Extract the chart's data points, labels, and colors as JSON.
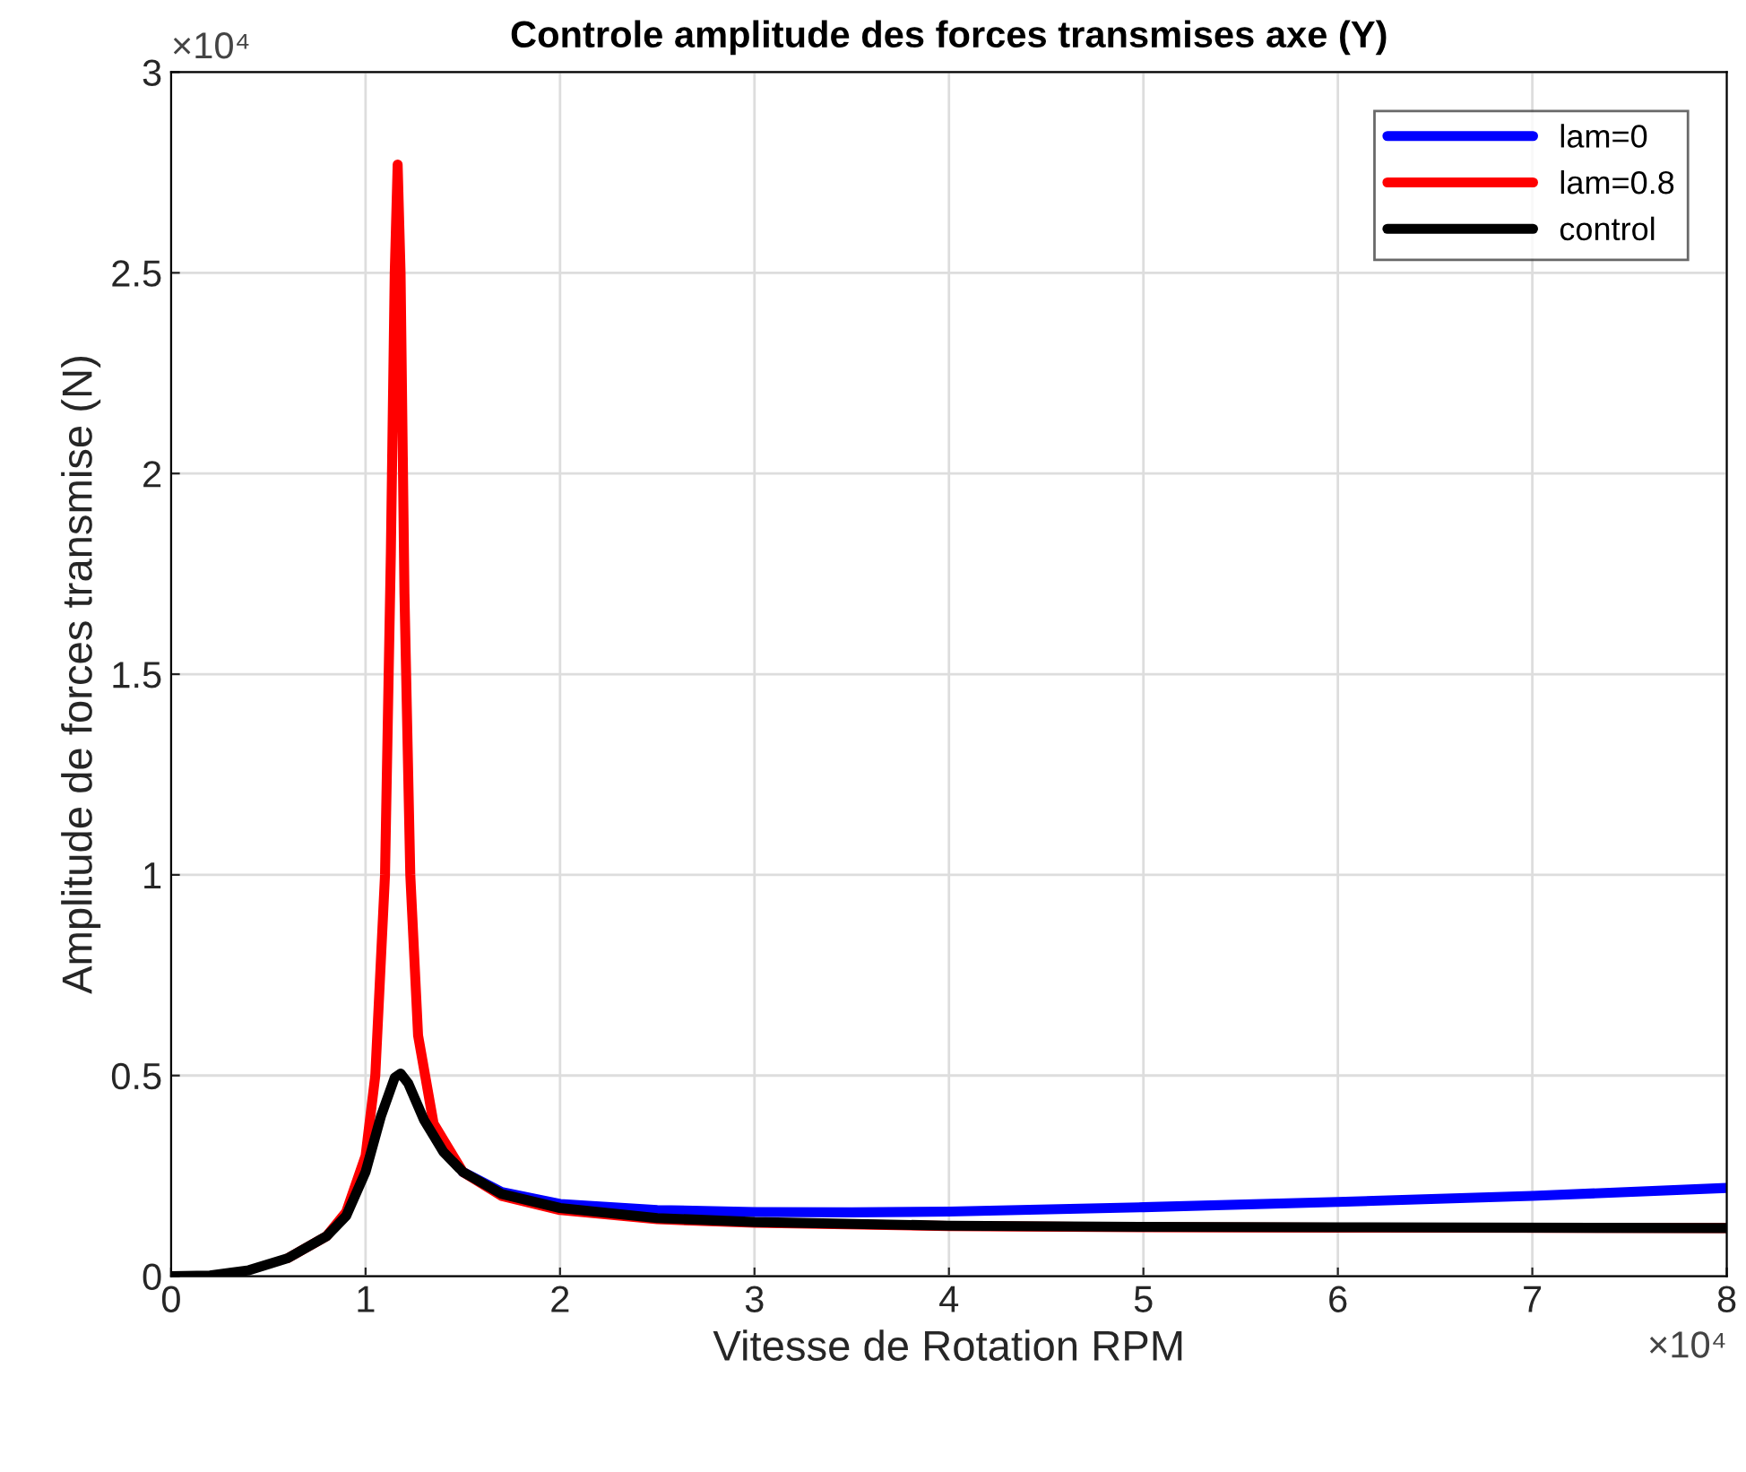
{
  "chart_data": {
    "type": "line",
    "title": "Controle amplitude des forces transmises axe (Y)",
    "xlabel": "Vitesse de Rotation RPM",
    "ylabel": "Amplitude de forces transmise (N)",
    "annotations": [
      "×10⁴",
      "×10⁴"
    ],
    "xlim": [
      0,
      8
    ],
    "xticks": [
      0,
      1,
      2,
      3,
      4,
      5,
      6,
      7,
      8
    ],
    "ylim": [
      0,
      3
    ],
    "yticks": [
      0,
      0.5,
      1,
      1.5,
      2,
      2.5,
      3
    ],
    "grid": true,
    "legend": "top right",
    "line_style": "solid",
    "series": [
      {
        "name": "lam=0",
        "color": "#0000ff",
        "x": [
          1.5,
          1.7,
          2.0,
          2.5,
          3.0,
          3.5,
          4.0,
          5.0,
          6.0,
          7.0,
          8.0
        ],
        "values": [
          0.26,
          0.21,
          0.18,
          0.165,
          0.16,
          0.159,
          0.161,
          0.172,
          0.185,
          0.2,
          0.22
        ]
      },
      {
        "name": "lam=0.8",
        "color": "#ff0000",
        "x": [
          0.6,
          0.8,
          0.9,
          1.0,
          1.05,
          1.1,
          1.13,
          1.15,
          1.165,
          1.18,
          1.2,
          1.23,
          1.27,
          1.35,
          1.5,
          1.7,
          2.0,
          2.5,
          3.0,
          4.0,
          5.0,
          6.0,
          8.0
        ],
        "values": [
          0.045,
          0.1,
          0.16,
          0.3,
          0.5,
          1.0,
          1.8,
          2.5,
          2.77,
          2.5,
          1.7,
          1.0,
          0.6,
          0.38,
          0.26,
          0.2,
          0.165,
          0.142,
          0.133,
          0.125,
          0.122,
          0.121,
          0.12
        ]
      },
      {
        "name": "control",
        "color": "#000000",
        "x": [
          0,
          0.2,
          0.4,
          0.6,
          0.8,
          0.9,
          1.0,
          1.08,
          1.15,
          1.18,
          1.22,
          1.3,
          1.4,
          1.5,
          1.7,
          2.0,
          2.5,
          3.0,
          4.0,
          5.0,
          6.0,
          8.0
        ],
        "values": [
          0,
          0.002,
          0.015,
          0.045,
          0.1,
          0.15,
          0.26,
          0.4,
          0.495,
          0.505,
          0.48,
          0.39,
          0.31,
          0.26,
          0.205,
          0.17,
          0.145,
          0.135,
          0.126,
          0.123,
          0.122,
          0.12
        ]
      }
    ]
  }
}
